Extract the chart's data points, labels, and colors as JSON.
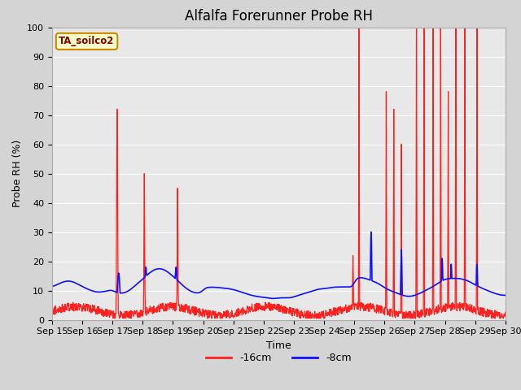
{
  "title": "Alfalfa Forerunner Probe RH",
  "xlabel": "Time",
  "ylabel": "Probe RH (%)",
  "ylim": [
    0,
    100
  ],
  "x_tick_labels": [
    "Sep 15",
    "Sep 16",
    "Sep 17",
    "Sep 18",
    "Sep 19",
    "Sep 20",
    "Sep 21",
    "Sep 22",
    "Sep 23",
    "Sep 24",
    "Sep 25",
    "Sep 26",
    "Sep 27",
    "Sep 28",
    "Sep 29",
    "Sep 30"
  ],
  "plot_bg_color": "#e8e8e8",
  "fig_bg_color": "#d4d4d4",
  "legend_label_box": "TA_soilco2",
  "legend_box_bg": "#ffffcc",
  "legend_box_edge": "#cc8800",
  "series_red_label": "-16cm",
  "series_blue_label": "-8cm",
  "red_color": "#ff2020",
  "blue_color": "#1010ff",
  "red_linewidth": 0.9,
  "blue_linewidth": 1.2,
  "title_fontsize": 12,
  "axis_fontsize": 9,
  "tick_fontsize": 8
}
